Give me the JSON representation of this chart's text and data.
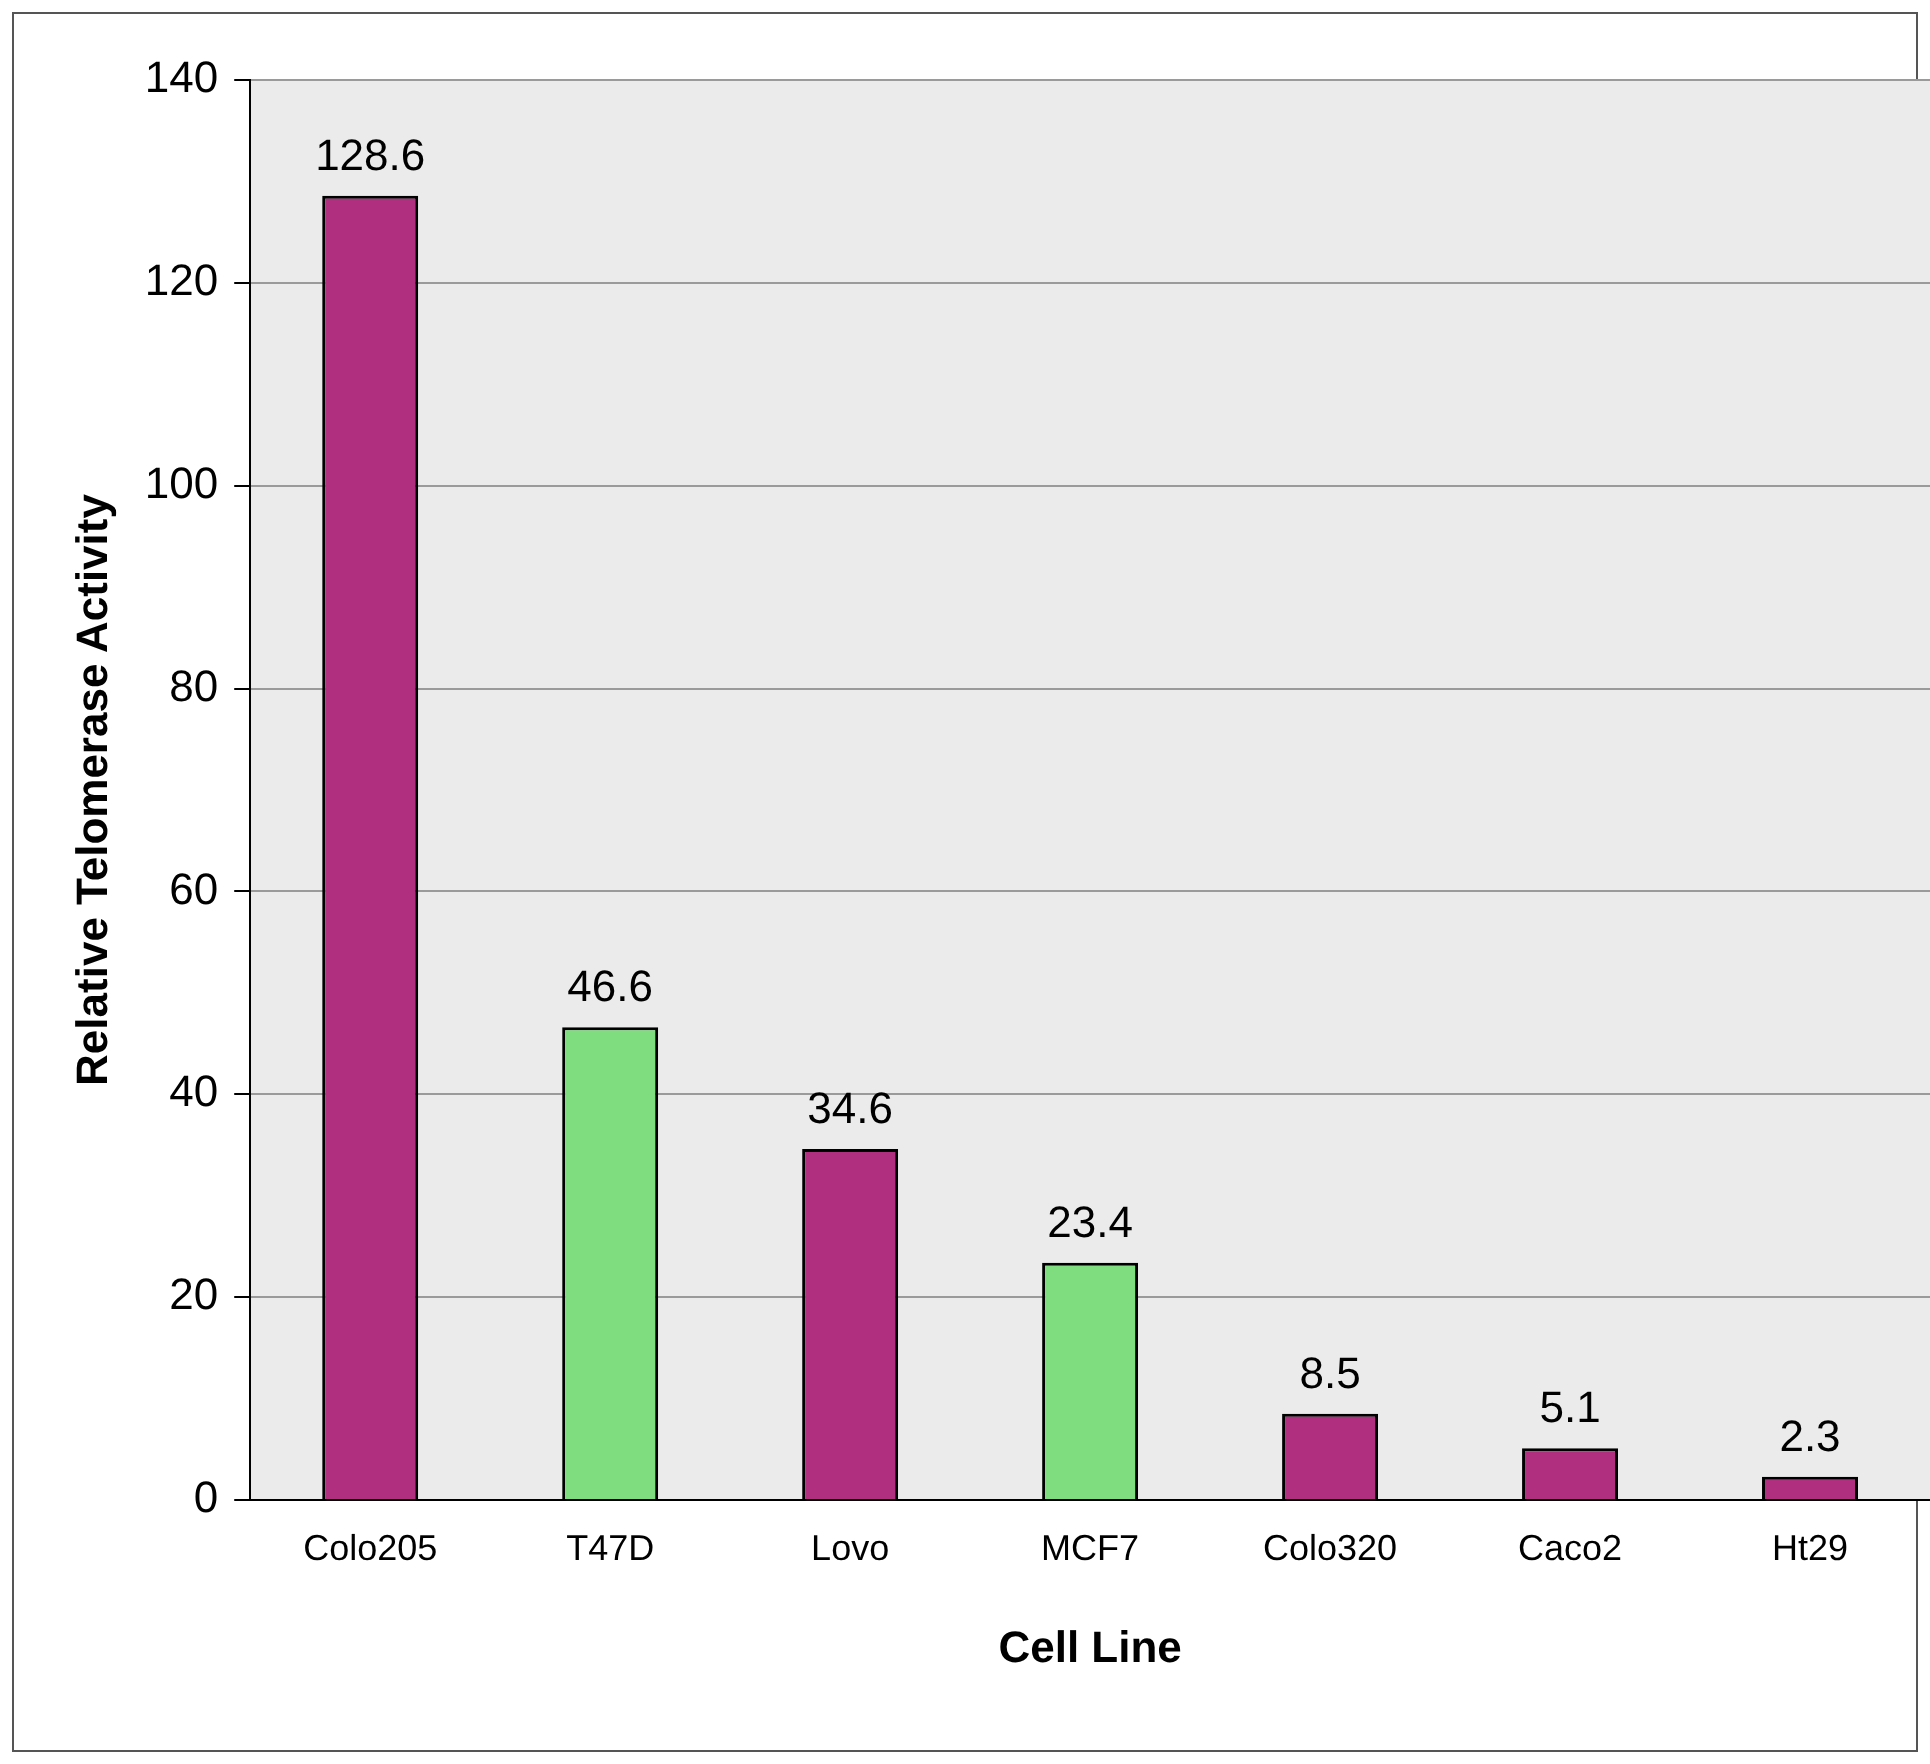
{
  "chart_data": {
    "type": "bar",
    "xlabel": "Cell Line",
    "ylabel": "Relative Telomerase Activity",
    "categories": [
      "Colo205",
      "T47D",
      "Lovo",
      "MCF7",
      "Colo320",
      "Caco2",
      "Ht29"
    ],
    "values": [
      128.6,
      46.6,
      34.6,
      23.4,
      8.5,
      5.1,
      2.3
    ],
    "colors": [
      "#b0307f",
      "#7fdc7f",
      "#b0307f",
      "#7fdc7f",
      "#b0307f",
      "#b0307f",
      "#b0307f"
    ],
    "ylim": [
      0,
      140
    ],
    "yticks": [
      0,
      20,
      40,
      60,
      80,
      100,
      120,
      140
    ],
    "grid": "y",
    "data_labels": true,
    "legend": false
  }
}
